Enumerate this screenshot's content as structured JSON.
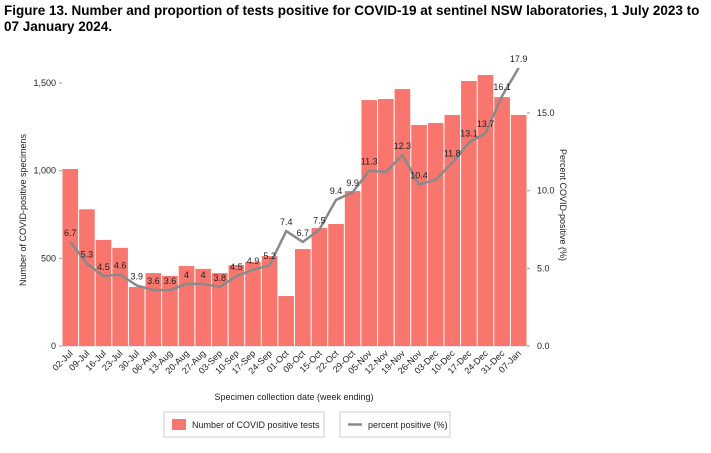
{
  "chart_data": {
    "type": "bar-line",
    "title": "Figure 13. Number and proportion of tests positive for COVID-19 at sentinel NSW laboratories, 1 July 2023 to 07 January 2024.",
    "x_label": "Specimen collection date (week ending)",
    "y_label": "Number of COVID-positive specimens",
    "y2_label": "Percent COVID-positive (%)",
    "categories": [
      "02-Jul",
      "09-Jul",
      "16-Jul",
      "23-Jul",
      "30-Jul",
      "06-Aug",
      "13-Aug",
      "20-Aug",
      "27-Aug",
      "03-Sep",
      "10-Sep",
      "17-Sep",
      "24-Sep",
      "01-Oct",
      "08-Oct",
      "15-Oct",
      "22-Oct",
      "29-Oct",
      "05-Nov",
      "12-Nov",
      "19-Nov",
      "26-Nov",
      "03-Dec",
      "10-Dec",
      "17-Dec",
      "24-Dec",
      "31-Dec",
      "07-Jan"
    ],
    "series": [
      {
        "name": "Number of COVID positive tests",
        "type": "bar",
        "color": "#f8766d",
        "values": [
          1010,
          780,
          605,
          560,
          337,
          416,
          400,
          456,
          440,
          416,
          462,
          480,
          513,
          285,
          553,
          673,
          696,
          884,
          1403,
          1409,
          1466,
          1261,
          1272,
          1318,
          1512,
          1546,
          1420,
          1318
        ]
      },
      {
        "name": "percent positive (%)",
        "type": "line",
        "axis": "y2",
        "color": "#8a8a8a",
        "values": [
          6.7,
          5.3,
          4.5,
          4.6,
          3.9,
          3.6,
          3.6,
          4,
          4,
          3.8,
          4.5,
          4.9,
          5.2,
          7.4,
          6.7,
          7.5,
          9.4,
          9.9,
          11.3,
          11.2,
          12.3,
          10.4,
          10.7,
          11.8,
          13.1,
          13.7,
          16.1,
          17.9
        ],
        "value_labels": [
          "6.7",
          "5.3",
          "4.5",
          "4.6",
          "3.9",
          "3.6",
          "3.6",
          "4",
          "4",
          "3.8",
          "4.5",
          "4.9",
          "5.2",
          "7.4",
          "6.7",
          "7.5",
          "9.4",
          "9.9",
          "11.3",
          null,
          "12.3",
          "10.4",
          null,
          "11.8",
          "13.1",
          "13.7",
          "16.1",
          "17.9"
        ]
      }
    ],
    "ylim": [
      0,
      1586
    ],
    "yticks": [
      0,
      500,
      {
        "value": 1000,
        "label": "1,000"
      },
      {
        "value": 1500,
        "label": "1,500"
      }
    ],
    "y2lim": [
      0,
      17.9
    ],
    "y2ticks": [
      {
        "value": 0,
        "label": "0.0"
      },
      {
        "value": 5,
        "label": "5.0"
      },
      {
        "value": 10,
        "label": "10.0"
      },
      {
        "value": 15,
        "label": "15.0"
      }
    ],
    "legend": "bottom"
  }
}
